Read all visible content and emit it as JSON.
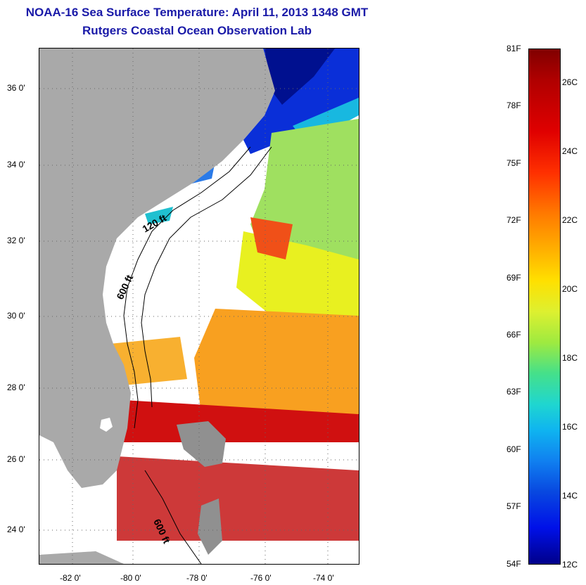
{
  "title": {
    "line1": "NOAA-16 Sea Surface Temperature:  April 11, 2013 1348 GMT",
    "line2": "Rutgers Coastal Ocean Observation Lab"
  },
  "map": {
    "lat_ticks": [
      "36 0'",
      "34 0'",
      "32 0'",
      "30 0'",
      "28 0'",
      "26 0'",
      "24 0'"
    ],
    "lon_ticks": [
      "-82 0'",
      "-80 0'",
      "-78 0'",
      "-76 0'",
      "-74 0'"
    ],
    "contour_labels": [
      "120 ft",
      "600 ft",
      "600 ft"
    ],
    "colors": {
      "land": "#a9a9a9",
      "grid": "#888888",
      "contour": "#000000"
    }
  },
  "colorbar": {
    "fahrenheit_labels": [
      "81F",
      "78F",
      "75F",
      "72F",
      "69F",
      "66F",
      "63F",
      "60F",
      "57F",
      "54F"
    ],
    "celsius_labels": [
      "26C",
      "24C",
      "22C",
      "20C",
      "18C",
      "16C",
      "14C",
      "12C"
    ]
  }
}
